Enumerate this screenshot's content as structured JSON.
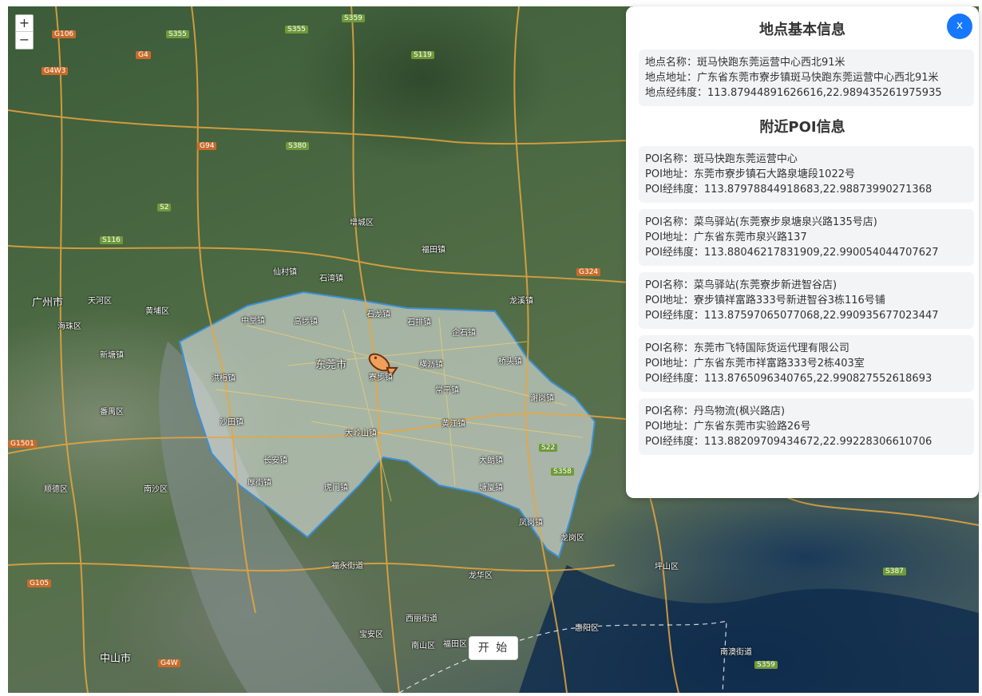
{
  "map": {
    "zoom_in": "+",
    "zoom_out": "−",
    "start_label": "开 始",
    "marker_icon": "fish-icon",
    "place_labels": [
      {
        "text": "广州市"
      },
      {
        "text": "天河区"
      },
      {
        "text": "海珠区"
      },
      {
        "text": "黄埔区"
      },
      {
        "text": "番禺区"
      },
      {
        "text": "南沙区"
      },
      {
        "text": "顺德区"
      },
      {
        "text": "增城区"
      },
      {
        "text": "东莞市"
      },
      {
        "text": "中堂镇"
      },
      {
        "text": "高埗镇"
      },
      {
        "text": "石龙镇"
      },
      {
        "text": "石排镇"
      },
      {
        "text": "企石镇"
      },
      {
        "text": "横沥镇"
      },
      {
        "text": "常平镇"
      },
      {
        "text": "桥头镇"
      },
      {
        "text": "谢岗镇"
      },
      {
        "text": "黄江镇"
      },
      {
        "text": "大岭山镇"
      },
      {
        "text": "洪梅镇"
      },
      {
        "text": "沙田镇"
      },
      {
        "text": "厚街镇"
      },
      {
        "text": "虎门镇"
      },
      {
        "text": "长安镇"
      },
      {
        "text": "塘厦镇"
      },
      {
        "text": "凤岗镇"
      },
      {
        "text": "大朗镇"
      },
      {
        "text": "寮步镇"
      },
      {
        "text": "龙岗区"
      },
      {
        "text": "龙华区"
      },
      {
        "text": "宝安区"
      },
      {
        "text": "南山区"
      },
      {
        "text": "福田区"
      },
      {
        "text": "深圳市"
      },
      {
        "text": "坪山区"
      },
      {
        "text": "惠阳区"
      },
      {
        "text": "中山市"
      },
      {
        "text": "新塘镇"
      },
      {
        "text": "福永街道"
      },
      {
        "text": "西丽街道"
      },
      {
        "text": "南澳街道"
      },
      {
        "text": "石湾镇"
      },
      {
        "text": "龙溪镇"
      },
      {
        "text": "福田镇"
      },
      {
        "text": "仙村镇"
      }
    ],
    "road_shields": [
      "G106",
      "S355",
      "S355",
      "G4",
      "G4W3",
      "S119",
      "S380",
      "G94",
      "S2",
      "S116",
      "G324",
      "S22",
      "S358",
      "S387",
      "G1501",
      "G105",
      "G4W",
      "S359",
      "S359"
    ]
  },
  "panel": {
    "close_label": "x",
    "basic_title": "地点基本信息",
    "basic": {
      "name": "地点名称：斑马快跑东莞运营中心西北91米",
      "address": "地点地址：广东省东莞市寮步镇斑马快跑东莞运营中心西北91米",
      "coords": "地点经纬度：113.87944891626616,22.989435261975935"
    },
    "poi_title": "附近POI信息",
    "pois": [
      {
        "name": "POI名称：斑马快跑东莞运营中心",
        "address": "POI地址：东莞市寮步镇石大路泉塘段1022号",
        "coords": "POI经纬度：113.87978844918683,22.98873990271368"
      },
      {
        "name": "POI名称：菜鸟驿站(东莞寮步泉塘泉兴路135号店)",
        "address": "POI地址：广东省东莞市泉兴路137",
        "coords": "POI经纬度：113.88046217831909,22.990054044707627"
      },
      {
        "name": "POI名称：菜鸟驿站(东莞寮步新进智谷店)",
        "address": "POI地址：寮步镇祥富路333号新进智谷3栋116号铺",
        "coords": "POI经纬度：113.87597065077068,22.990935677023447"
      },
      {
        "name": "POI名称：东莞市飞特国际货运代理有限公司",
        "address": "POI地址：广东省东莞市祥富路333号2栋403室",
        "coords": "POI经纬度：113.8765096340765,22.990827552618693"
      },
      {
        "name": "POI名称：丹鸟物流(枫兴路店)",
        "address": "POI地址：广东省东莞市实验路26号",
        "coords": "POI经纬度：113.88209709434672,22.99228306610706"
      }
    ]
  }
}
